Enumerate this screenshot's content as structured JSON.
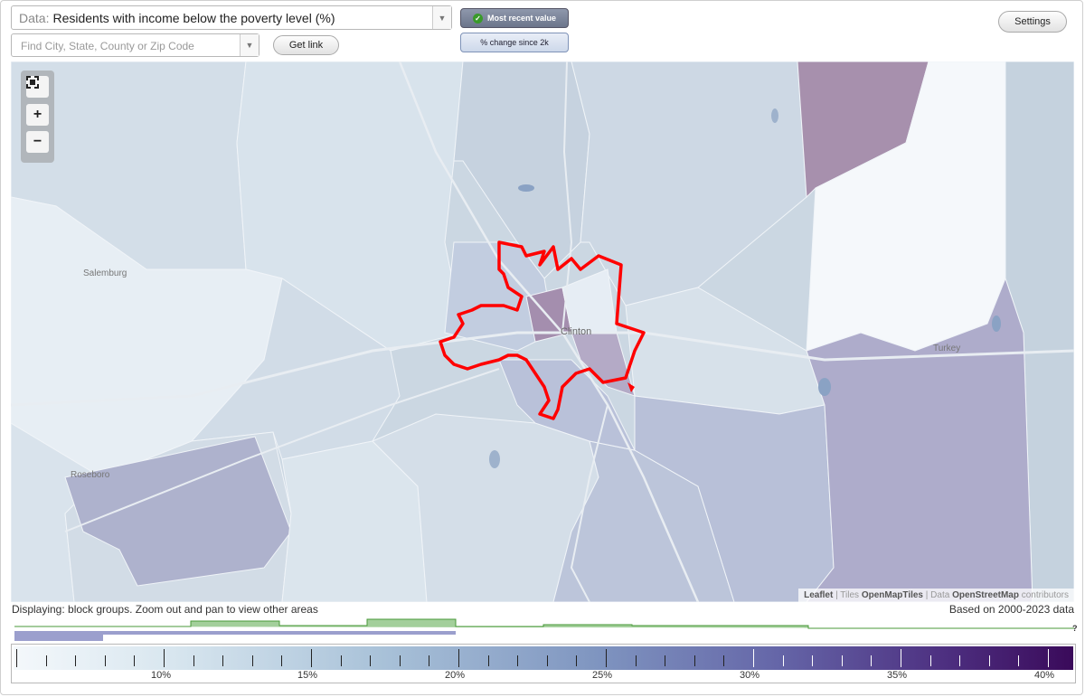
{
  "controls": {
    "data_label": "Data:",
    "data_value": "Residents with income below the poverty level (%)",
    "search_placeholder": "Find City, State, County or Zip Code",
    "get_link": "Get link",
    "settings": "Settings",
    "most_recent": "Most recent value",
    "change_since": "% change since 2k"
  },
  "icons": {
    "dropdown": "chevron-down-icon",
    "check": "check-icon",
    "fullscreen": "fullscreen-icon",
    "zoom_in": "plus-icon",
    "zoom_out": "minus-icon"
  },
  "map": {
    "places": [
      "Salemburg",
      "Clinton",
      "Turkey",
      "Roseboro"
    ],
    "attribution": {
      "leaflet": "Leaflet",
      "tiles_prefix": "| Tiles",
      "tiles": "OpenMapTiles",
      "data_prefix": "| Data",
      "data": "OpenStreetMap",
      "suffix": "contributors"
    },
    "highlight_color": "#ff0000"
  },
  "footer": {
    "displaying": "Displaying: block groups. Zoom out and pan to view other areas",
    "based_on": "Based on 2000-2023 data",
    "help": "?"
  },
  "legend": {
    "labels": [
      "10%",
      "15%",
      "20%",
      "25%",
      "30%",
      "35%",
      "40%"
    ],
    "colors": {
      "low": "#f4f8fb",
      "mid": "#7f95c0",
      "high": "#3a0a5a"
    }
  }
}
